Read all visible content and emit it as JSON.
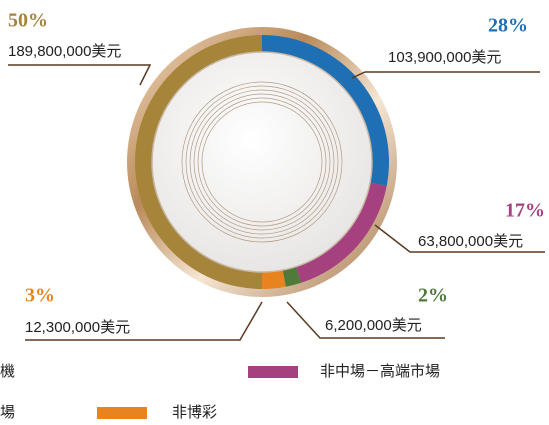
{
  "chart_data": {
    "type": "donut",
    "categories": [
      "機",
      "非中場－高端市場",
      null,
      "非博彩",
      "場"
    ],
    "values": [
      28,
      17,
      2,
      3,
      50
    ],
    "value_labels": [
      "28%",
      "17%",
      "2%",
      "3%",
      "50%"
    ],
    "amounts": [
      103900000,
      63800000,
      6200000,
      12300000,
      189800000
    ],
    "amount_labels": [
      "103,900,000美元",
      "63,800,000美元",
      "6,200,000美元",
      "12,300,000美元",
      "189,800,000美元"
    ],
    "colors": [
      "#1f6fb4",
      "#a5417f",
      "#4f7a3a",
      "#e8841e",
      "#a6853a"
    ]
  }
}
